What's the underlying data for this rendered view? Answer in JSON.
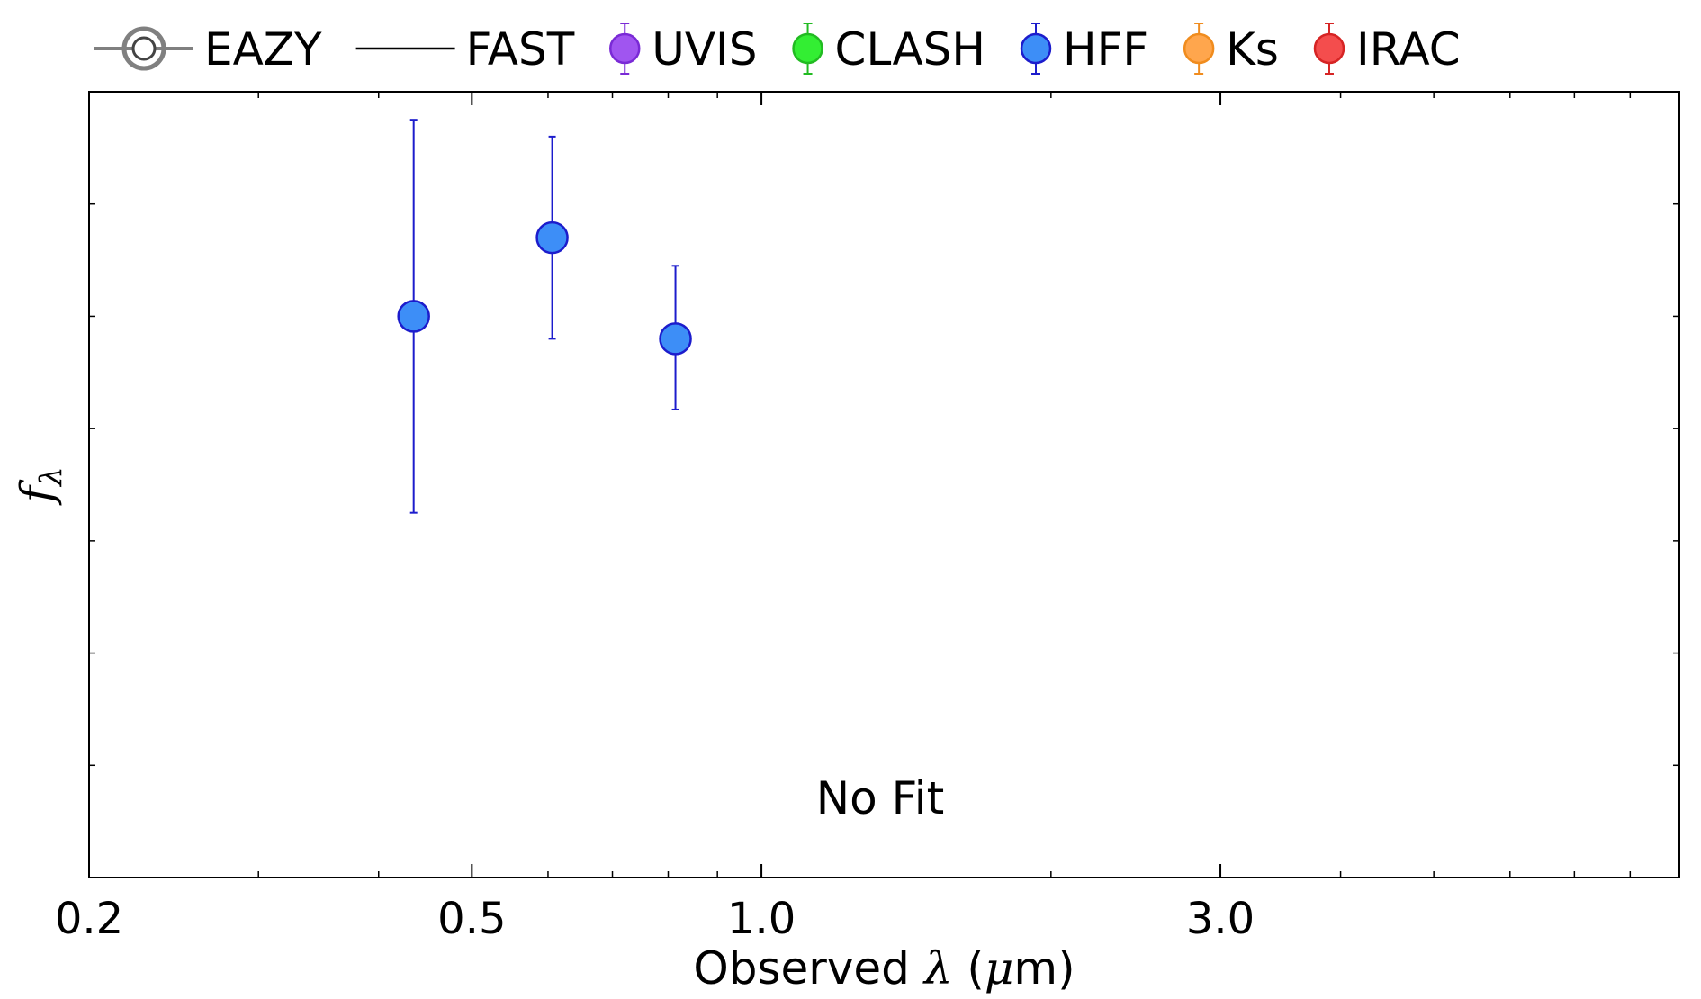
{
  "chart_data": {
    "type": "scatter",
    "xscale": "log",
    "xlim": [
      0.2,
      9.0
    ],
    "xticks": [
      {
        "value": 0.2,
        "label": "0.2"
      },
      {
        "value": 0.5,
        "label": "0.5"
      },
      {
        "value": 1.0,
        "label": "1.0"
      },
      {
        "value": 3.0,
        "label": "3.0"
      }
    ],
    "xlabel_prefix": "Observed ",
    "xlabel_lambda": "λ",
    "xlabel_open": " (",
    "xlabel_mu": "μ",
    "xlabel_unit": "m)",
    "ylabel_f": "f",
    "ylabel_sub": "λ",
    "ylim": [
      0,
      7
    ],
    "grid": false,
    "legend_position": "top",
    "legend": [
      {
        "name": "EAZY",
        "kind": "eazy",
        "color": "#808080"
      },
      {
        "name": "FAST",
        "kind": "line",
        "color": "#000000"
      },
      {
        "name": "UVIS",
        "kind": "marker",
        "color": "#a055f0",
        "edge": "#7a2ad6"
      },
      {
        "name": "CLASH",
        "kind": "marker",
        "color": "#33ee33",
        "edge": "#22bb22"
      },
      {
        "name": "HFF",
        "kind": "marker",
        "color": "#3d8ef7",
        "edge": "#1c1ccc"
      },
      {
        "name": "Ks",
        "kind": "marker",
        "color": "#ffa64d",
        "edge": "#f08c1e"
      },
      {
        "name": "IRAC",
        "kind": "marker",
        "color": "#f44d4d",
        "edge": "#d62424"
      }
    ],
    "series": [
      {
        "name": "HFF",
        "color": "#3d8ef7",
        "edge": "#1c1ccc",
        "points": [
          {
            "x": 0.435,
            "y": 5.0,
            "yerr_low": 1.75,
            "yerr_high": 1.75
          },
          {
            "x": 0.606,
            "y": 5.7,
            "yerr_low": 0.9,
            "yerr_high": 0.9
          },
          {
            "x": 0.814,
            "y": 4.8,
            "yerr_low": 0.63,
            "yerr_high": 0.65
          }
        ]
      }
    ],
    "annotation": "No Fit"
  }
}
